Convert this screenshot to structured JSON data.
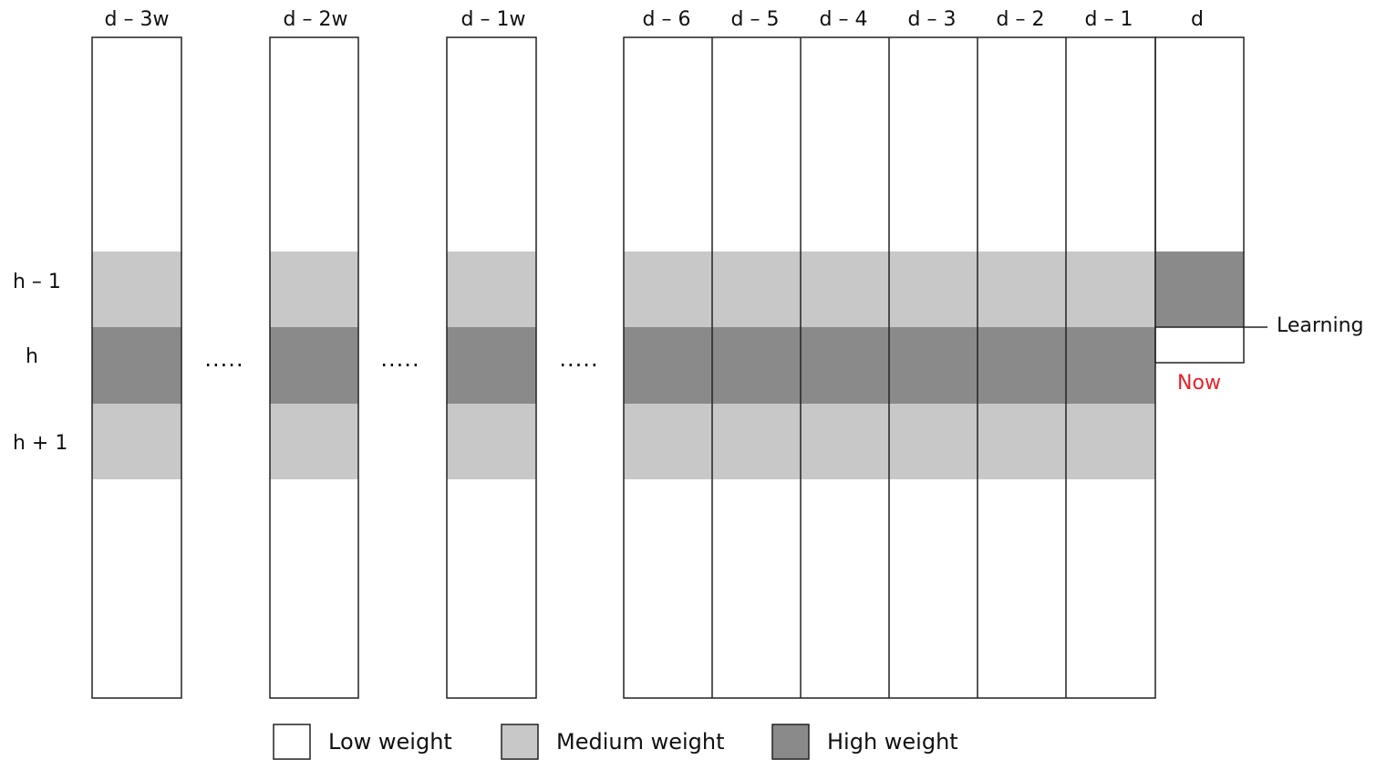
{
  "columns": [
    {
      "label": "d – 3w",
      "role": "history",
      "weights": {
        "h_minus_1": "medium",
        "h": "high",
        "h_plus_1": "medium"
      }
    },
    {
      "label": "d – 2w",
      "role": "history",
      "weights": {
        "h_minus_1": "medium",
        "h": "high",
        "h_plus_1": "medium"
      }
    },
    {
      "label": "d – 1w",
      "role": "history",
      "weights": {
        "h_minus_1": "medium",
        "h": "high",
        "h_plus_1": "medium"
      }
    },
    {
      "label": "d – 6",
      "role": "history",
      "weights": {
        "h_minus_1": "medium",
        "h": "high",
        "h_plus_1": "medium"
      }
    },
    {
      "label": "d – 5",
      "role": "history",
      "weights": {
        "h_minus_1": "medium",
        "h": "high",
        "h_plus_1": "medium"
      }
    },
    {
      "label": "d – 4",
      "role": "history",
      "weights": {
        "h_minus_1": "medium",
        "h": "high",
        "h_plus_1": "medium"
      }
    },
    {
      "label": "d – 3",
      "role": "history",
      "weights": {
        "h_minus_1": "medium",
        "h": "high",
        "h_plus_1": "medium"
      }
    },
    {
      "label": "d – 2",
      "role": "history",
      "weights": {
        "h_minus_1": "medium",
        "h": "high",
        "h_plus_1": "medium"
      }
    },
    {
      "label": "d – 1",
      "role": "history",
      "weights": {
        "h_minus_1": "medium",
        "h": "high",
        "h_plus_1": "medium"
      }
    },
    {
      "label": "d",
      "role": "current",
      "weights": {
        "h_minus_1": "high"
      }
    }
  ],
  "rows": {
    "h_minus_1": "h – 1",
    "h": "h",
    "h_plus_1": "h + 1"
  },
  "ellipsis": ".....",
  "annotations": {
    "learning": "Learning",
    "now": "Now"
  },
  "legend": [
    {
      "key": "low",
      "label": "Low weight"
    },
    {
      "key": "medium",
      "label": "Medium weight"
    },
    {
      "key": "high",
      "label": "High weight"
    }
  ],
  "colors": {
    "low": "#ffffff",
    "medium": "#c8c8c8",
    "high": "#8a8a8a",
    "stroke": "#222222",
    "now": "#e8202a"
  }
}
